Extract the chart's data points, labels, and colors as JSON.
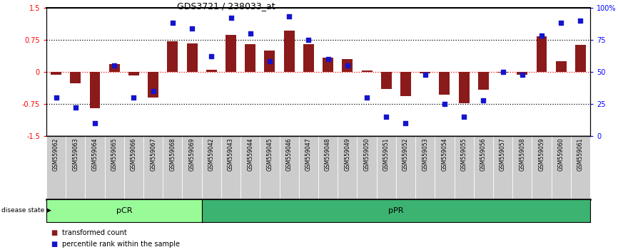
{
  "title": "GDS3721 / 238033_at",
  "samples": [
    "GSM559062",
    "GSM559063",
    "GSM559064",
    "GSM559065",
    "GSM559066",
    "GSM559067",
    "GSM559068",
    "GSM559069",
    "GSM559042",
    "GSM559043",
    "GSM559044",
    "GSM559045",
    "GSM559046",
    "GSM559047",
    "GSM559048",
    "GSM559049",
    "GSM559050",
    "GSM559051",
    "GSM559052",
    "GSM559053",
    "GSM559054",
    "GSM559055",
    "GSM559056",
    "GSM559057",
    "GSM559058",
    "GSM559059",
    "GSM559060",
    "GSM559061"
  ],
  "bar_values": [
    -0.07,
    -0.26,
    -0.85,
    0.18,
    -0.09,
    -0.6,
    0.72,
    0.67,
    0.04,
    0.87,
    0.64,
    0.5,
    0.97,
    0.64,
    0.33,
    0.3,
    0.03,
    -0.4,
    -0.57,
    -0.04,
    -0.54,
    -0.73,
    -0.42,
    -0.02,
    -0.07,
    0.83,
    0.25,
    0.63
  ],
  "percentile_values": [
    30,
    22,
    10,
    55,
    30,
    35,
    88,
    84,
    62,
    92,
    80,
    58,
    93,
    75,
    60,
    55,
    30,
    15,
    10,
    48,
    25,
    15,
    28,
    50,
    48,
    78,
    88,
    90
  ],
  "pCR_count": 8,
  "bar_color": "#8B1A1A",
  "dot_color": "#1414CD",
  "bar_width": 0.55,
  "ylim_left": [
    -1.5,
    1.5
  ],
  "ylim_right": [
    0,
    100
  ],
  "yticks_left": [
    -1.5,
    -0.75,
    0.0,
    0.75,
    1.5
  ],
  "ytick_labels_left": [
    "-1.5",
    "-0.75",
    "0",
    "0.75",
    "1.5"
  ],
  "yticks_right": [
    0,
    25,
    50,
    75,
    100
  ],
  "ytick_labels_right": [
    "0",
    "25",
    "50",
    "75",
    "100%"
  ],
  "hlines_dotted": [
    -0.75,
    0.75
  ],
  "pCR_color": "#98FB98",
  "pPR_color": "#3CB371",
  "legend_bar_label": "transformed count",
  "legend_dot_label": "percentile rank within the sample",
  "disease_state_label": "disease state",
  "pCR_label": "pCR",
  "pPR_label": "pPR",
  "bg_color": "#cccccc"
}
